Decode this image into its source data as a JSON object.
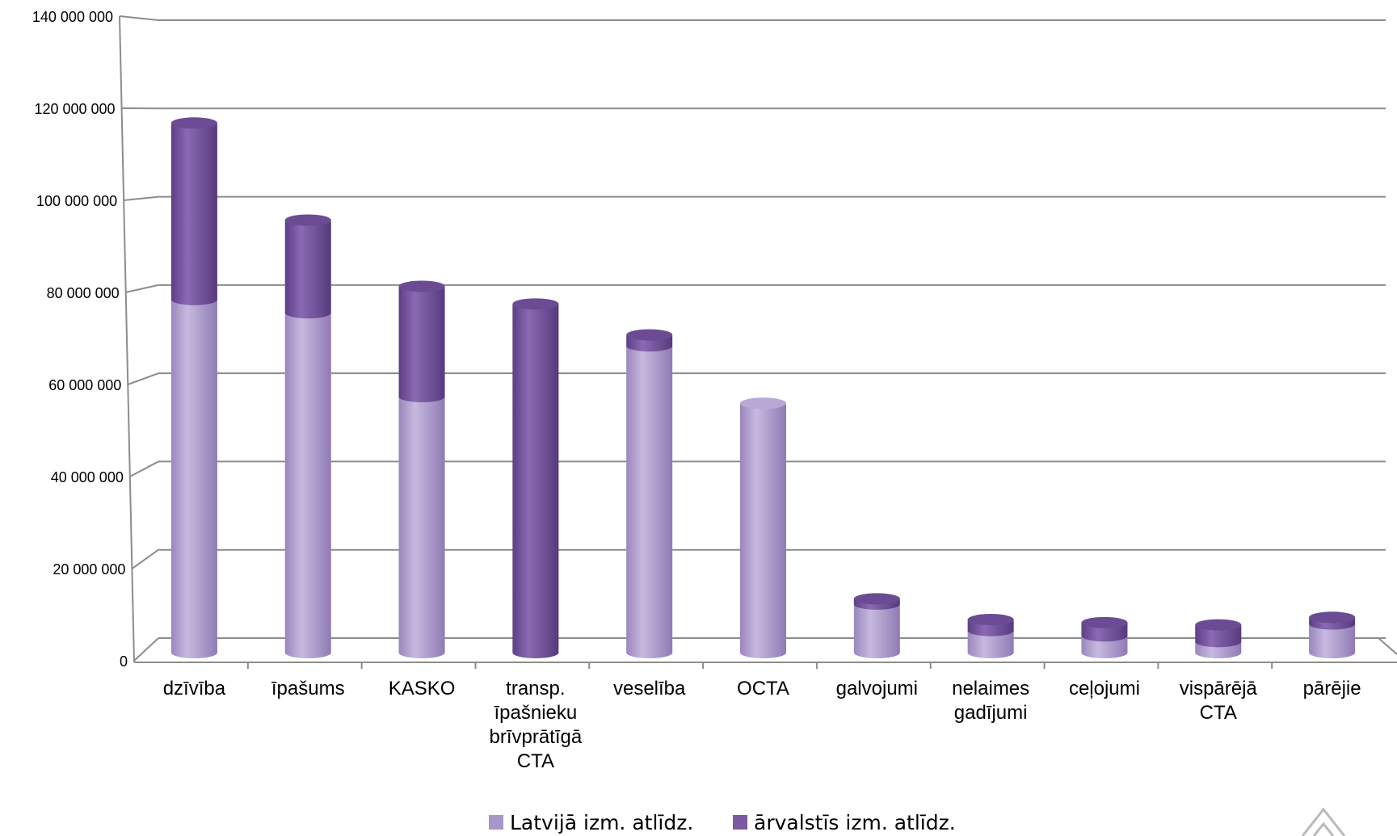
{
  "chart_data": {
    "type": "bar",
    "stacked": true,
    "three_d": true,
    "categories": [
      [
        "dzīvība"
      ],
      [
        "īpašums"
      ],
      [
        "KASKO"
      ],
      [
        "transp.",
        "īpašnieku",
        "brīvprātīgā",
        "CTA"
      ],
      [
        "veselība"
      ],
      [
        "OCTA"
      ],
      [
        "galvojumi"
      ],
      [
        "nelaimes",
        "gadījumi"
      ],
      [
        "ceļojumi"
      ],
      [
        "vispārējā",
        "CTA"
      ],
      [
        "pārējie"
      ]
    ],
    "series": [
      {
        "name": "Latvijā izm. atlīdz.",
        "color": "#a896c8",
        "values": [
          80000000,
          77000000,
          58000000,
          0,
          69500000,
          56500000,
          11000000,
          5000000,
          3800000,
          2500000,
          6500000
        ]
      },
      {
        "name": "ārvalstīs izm. atlīdz.",
        "color": "#7a5aa0",
        "values": [
          40000000,
          21000000,
          25000000,
          79000000,
          2500000,
          0,
          1200000,
          2500000,
          3000000,
          3800000,
          1500000
        ]
      }
    ],
    "yticks": [
      "0",
      "20 000 000",
      "40 000 000",
      "60 000 000",
      "80 000 000",
      "100 000 000",
      "120 000 000",
      "140 000 000"
    ],
    "ylim": [
      0,
      140000000
    ],
    "grid": true,
    "legend_position": "bottom",
    "title": "",
    "xlabel": "",
    "ylabel": ""
  }
}
